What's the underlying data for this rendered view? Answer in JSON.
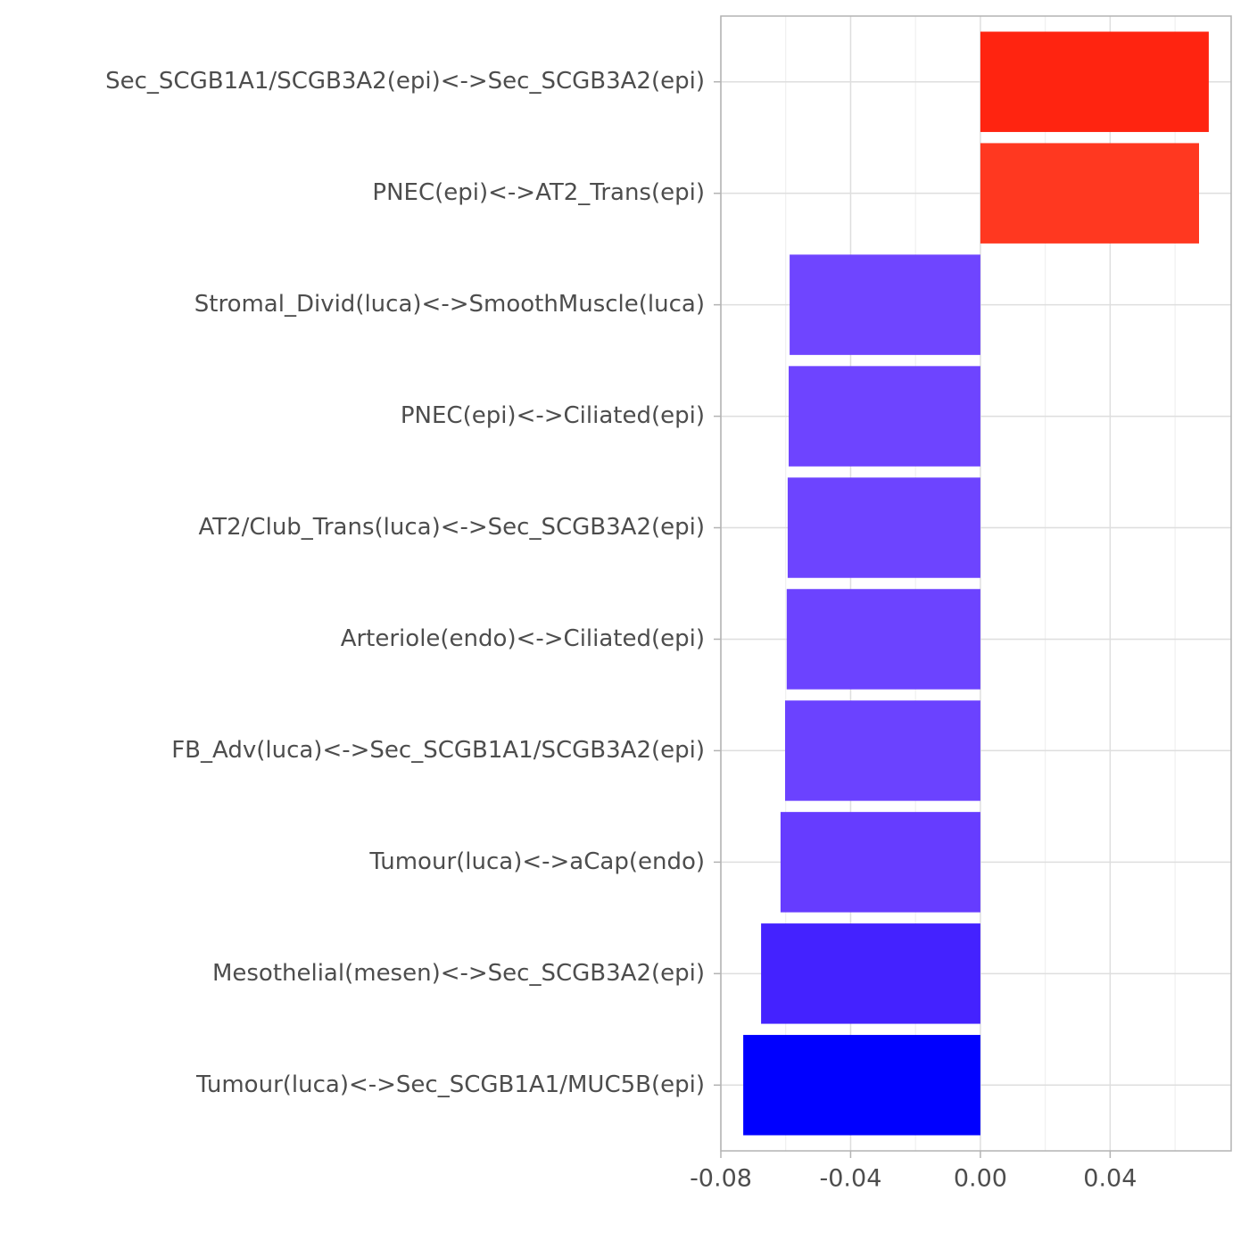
{
  "chart_data": {
    "type": "barh",
    "categories": [
      "Sec_SCGB1A1/SCGB3A2(epi)<->Sec_SCGB3A2(epi)",
      "PNEC(epi)<->AT2_Trans(epi)",
      "Stromal_Divid(luca)<->SmoothMuscle(luca)",
      "PNEC(epi)<->Ciliated(epi)",
      "AT2/Club_Trans(luca)<->Sec_SCGB3A2(epi)",
      "Arteriole(endo)<->Ciliated(epi)",
      "FB_Adv(luca)<->Sec_SCGB1A1/SCGB3A2(epi)",
      "Tumour(luca)<->aCap(endo)",
      "Mesothelial(mesen)<->Sec_SCGB3A2(epi)",
      "Tumour(luca)<->Sec_SCGB1A1/MUC5B(epi)"
    ],
    "values": [
      0.0704,
      0.0674,
      -0.0588,
      -0.0591,
      -0.0594,
      -0.0597,
      -0.0602,
      -0.0616,
      -0.0676,
      -0.0731
    ],
    "colors": [
      "#ff2410",
      "#ff3820",
      "#6f45ff",
      "#6e44ff",
      "#6d44ff",
      "#6c43ff",
      "#6b42ff",
      "#663cff",
      "#4422ff",
      "#0000ff"
    ],
    "xlim": [
      -0.08,
      0.0773
    ],
    "xticks": [
      -0.08,
      -0.04,
      {
        "value": 0,
        "label": "0.00"
      },
      0.04
    ],
    "minor_xticks": [
      -0.06,
      -0.02,
      0.02,
      0.06
    ],
    "grid": true
  }
}
